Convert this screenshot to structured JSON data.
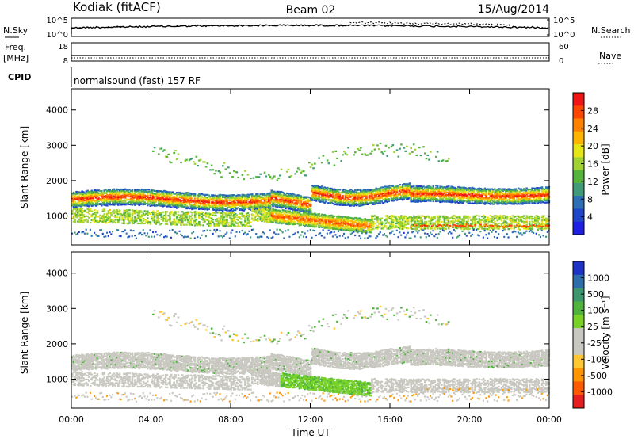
{
  "header": {
    "station": "Kodiak (fitACF)",
    "beam": "Beam 02",
    "date": "15/Aug/2014"
  },
  "panels": {
    "nsky": {
      "left_label": "N.Sky",
      "left_ticks": [
        "10^5",
        "10^0"
      ],
      "right_ticks": [
        "10^5",
        "10^0"
      ],
      "right_label": "N.Search"
    },
    "freq": {
      "left_label_1": "Freq.",
      "left_label_2": "[MHz]",
      "left_ticks": [
        "18",
        "8"
      ],
      "right_ticks": [
        "60",
        "0"
      ],
      "right_label": "Nave"
    },
    "cpid": {
      "left_label": "CPID",
      "text": "normalsound (fast) 157 RF"
    }
  },
  "chart_data": [
    {
      "type": "heatmap",
      "title": "",
      "xlabel": "",
      "ylabel": "Slant Range [km]",
      "xlim": [
        0,
        24
      ],
      "ylim": [
        180,
        4600
      ],
      "yticks": [
        "1000",
        "2000",
        "3000",
        "4000"
      ],
      "colorbar": {
        "label": "Power [dB]",
        "ticks": [
          "4",
          "8",
          "12",
          "16",
          "20",
          "24",
          "28"
        ],
        "colors": [
          "#1e1ee6",
          "#1e46c8",
          "#2d6eb4",
          "#419b78",
          "#55b43c",
          "#a0d232",
          "#e6e614",
          "#ffb400",
          "#ff8200",
          "#ff4600",
          "#f01414"
        ]
      }
    },
    {
      "type": "heatmap",
      "title": "",
      "xlabel": "Time UT",
      "ylabel": "Slant Range [km]",
      "xlim": [
        0,
        24
      ],
      "ylim": [
        180,
        4600
      ],
      "xticks": [
        "00:00",
        "04:00",
        "08:00",
        "12:00",
        "16:00",
        "20:00",
        "00:00"
      ],
      "yticks": [
        "1000",
        "2000",
        "3000",
        "4000"
      ],
      "colorbar": {
        "label": "Velocity [m s⁻¹]",
        "ticks": [
          "1000",
          "500",
          "100",
          "25",
          "-25",
          "-100",
          "-500",
          "-1000"
        ],
        "colors": [
          "#1e32c8",
          "#2d6eaa",
          "#3c966e",
          "#50b43c",
          "#78d228",
          "#c8c8c0",
          "#c8c8c0",
          "#ffc832",
          "#ff9600",
          "#ff5a00",
          "#e61e1e"
        ]
      }
    }
  ]
}
